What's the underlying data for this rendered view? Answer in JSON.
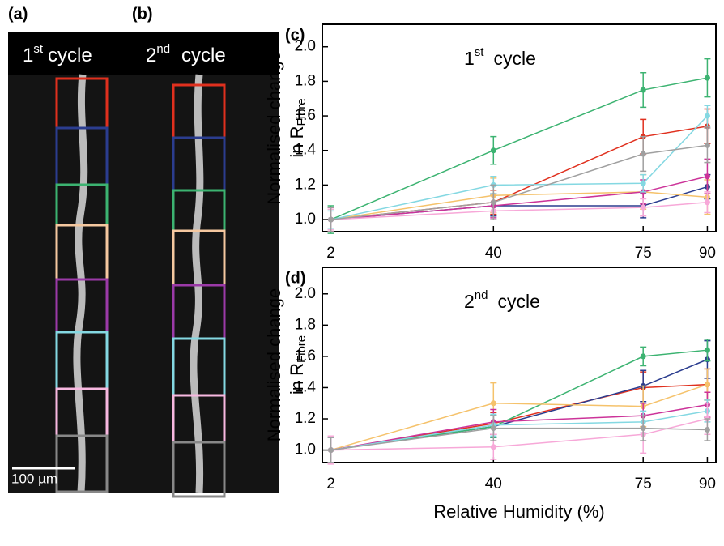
{
  "panels": [
    {
      "label": "(a)",
      "caption": {
        "number": "1",
        "sup": "st",
        "text": "cycle"
      }
    },
    {
      "label": "(b)",
      "caption": {
        "number": "2",
        "sup": "nd",
        "text": "cycle"
      }
    }
  ],
  "scale_bar": "100 µm",
  "chart_data": [
    {
      "type": "line",
      "panel_label": "(c)",
      "annotation": {
        "number": "1",
        "sup": "st",
        "text": "cycle"
      },
      "ylabel": {
        "line1": "Normalised change",
        "line2": "in R",
        "sub": "Fibre"
      },
      "x": [
        2,
        40,
        75,
        90
      ],
      "xlim": [
        0,
        92
      ],
      "xticks": [
        2,
        40,
        75,
        90
      ],
      "ylim": [
        0.93,
        2.13
      ],
      "yticks": [
        {
          "value": 1,
          "label": "1.0"
        },
        {
          "value": 1.2,
          "label": "1.2"
        },
        {
          "value": 1.4,
          "label": "1.4"
        },
        {
          "value": 1.6,
          "label": "1.6"
        },
        {
          "value": 1.8,
          "label": "1.8"
        },
        {
          "value": 2,
          "label": "2.0"
        }
      ],
      "series": [
        {
          "color": "#e0301e",
          "values": [
            1,
            1.1,
            1.48,
            1.54
          ],
          "errors": [
            0.07,
            0.07,
            0.1,
            0.1
          ]
        },
        {
          "color": "#2b3d8f",
          "values": [
            1,
            1.08,
            1.08,
            1.19
          ],
          "errors": [
            0.07,
            0.06,
            0.07,
            0.07
          ]
        },
        {
          "color": "#3cb371",
          "values": [
            1,
            1.4,
            1.75,
            1.82
          ],
          "errors": [
            0.08,
            0.08,
            0.1,
            0.11
          ]
        },
        {
          "color": "#f5c26b",
          "values": [
            1,
            1.14,
            1.16,
            1.13
          ],
          "errors": [
            0.07,
            0.1,
            0.1,
            0.1
          ]
        },
        {
          "color": "#cc3399",
          "values": [
            1,
            1.08,
            1.16,
            1.25
          ],
          "errors": [
            0.07,
            0.07,
            0.07,
            0.1
          ]
        },
        {
          "color": "#84d8e2",
          "values": [
            1,
            1.2,
            1.21,
            1.6
          ],
          "errors": [
            0.05,
            0.05,
            0.05,
            0.06
          ]
        },
        {
          "color": "#f7a8d8",
          "values": [
            1,
            1.05,
            1.07,
            1.1
          ],
          "errors": [
            0.06,
            0.05,
            0.05,
            0.06
          ]
        },
        {
          "color": "#a0a0a0",
          "values": [
            1,
            1.1,
            1.38,
            1.43
          ],
          "errors": [
            0.07,
            0.1,
            0.1,
            0.1
          ]
        }
      ]
    },
    {
      "type": "line",
      "panel_label": "(d)",
      "annotation": {
        "number": "2",
        "sup": "nd",
        "text": "cycle"
      },
      "ylabel": {
        "line1": "Normalised change",
        "line2": "in R",
        "sub": "Fibre"
      },
      "xlabel": "Relative Humidity (%)",
      "x": [
        2,
        40,
        75,
        90
      ],
      "xlim": [
        0,
        92
      ],
      "xticks": [
        2,
        40,
        75,
        90
      ],
      "ylim": [
        0.92,
        2.17
      ],
      "yticks": [
        {
          "value": 1,
          "label": "1.0"
        },
        {
          "value": 1.2,
          "label": "1.2"
        },
        {
          "value": 1.4,
          "label": "1.4"
        },
        {
          "value": 1.6,
          "label": "1.6"
        },
        {
          "value": 1.8,
          "label": "1.8"
        },
        {
          "value": 2,
          "label": "2.0"
        }
      ],
      "series": [
        {
          "color": "#e0301e",
          "values": [
            1,
            1.17,
            1.4,
            1.42
          ],
          "errors": [
            0.08,
            0.07,
            0.1,
            0.1
          ]
        },
        {
          "color": "#2b3d8f",
          "values": [
            1,
            1.15,
            1.41,
            1.58
          ],
          "errors": [
            0.08,
            0.07,
            0.1,
            0.12
          ]
        },
        {
          "color": "#3cb371",
          "values": [
            1,
            1.15,
            1.6,
            1.64
          ],
          "errors": [
            0.08,
            0.07,
            0.06,
            0.07
          ]
        },
        {
          "color": "#f5c26b",
          "values": [
            1,
            1.3,
            1.28,
            1.42
          ],
          "errors": [
            0.08,
            0.13,
            0.13,
            0.1
          ]
        },
        {
          "color": "#cc3399",
          "values": [
            1,
            1.18,
            1.22,
            1.29
          ],
          "errors": [
            0.08,
            0.08,
            0.08,
            0.08
          ]
        },
        {
          "color": "#84d8e2",
          "values": [
            1,
            1.16,
            1.18,
            1.25
          ],
          "errors": [
            0.08,
            0.07,
            0.07,
            0.07
          ]
        },
        {
          "color": "#f7a8d8",
          "values": [
            1,
            1.02,
            1.1,
            1.2
          ],
          "errors": [
            0.09,
            0.08,
            0.12,
            0.1
          ]
        },
        {
          "color": "#a0a0a0",
          "values": [
            1,
            1.14,
            1.14,
            1.13
          ],
          "errors": [
            0.08,
            0.08,
            0.08,
            0.07
          ]
        }
      ]
    }
  ]
}
